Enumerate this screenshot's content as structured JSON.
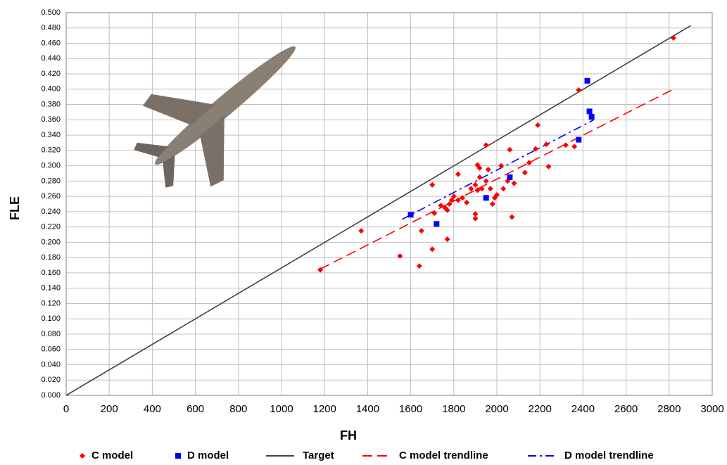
{
  "chart_data": {
    "type": "scatter",
    "x_label": "FH",
    "y_label": "FLE",
    "xlim": [
      0,
      3000
    ],
    "ylim": [
      0,
      0.5
    ],
    "xticks": [
      0,
      200,
      400,
      600,
      800,
      1000,
      1200,
      1400,
      1600,
      1800,
      2000,
      2200,
      2400,
      2600,
      2800,
      3000
    ],
    "yticks": [
      {
        "value": 0,
        "label": "0.000"
      },
      {
        "value": 0.02,
        "label": "0.020"
      },
      {
        "value": 0.04,
        "label": "0.040"
      },
      {
        "value": 0.06,
        "label": "0.060"
      },
      {
        "value": 0.08,
        "label": "0.080"
      },
      {
        "value": 0.1,
        "label": "0.100"
      },
      {
        "value": 0.12,
        "label": "0.120"
      },
      {
        "value": 0.14,
        "label": "0.140"
      },
      {
        "value": 0.16,
        "label": "0.160"
      },
      {
        "value": 0.18,
        "label": "0.180"
      },
      {
        "value": 0.2,
        "label": "0.200"
      },
      {
        "value": 0.22,
        "label": "0.220"
      },
      {
        "value": 0.24,
        "label": "0.240"
      },
      {
        "value": 0.26,
        "label": "0.260"
      },
      {
        "value": 0.28,
        "label": "0.280"
      },
      {
        "value": 0.3,
        "label": "0.300"
      },
      {
        "value": 0.32,
        "label": "0.320"
      },
      {
        "value": 0.34,
        "label": "0.340"
      },
      {
        "value": 0.36,
        "label": "0.360"
      },
      {
        "value": 0.38,
        "label": "0.380"
      },
      {
        "value": 0.4,
        "label": "0.400"
      },
      {
        "value": 0.42,
        "label": "0.420"
      },
      {
        "value": 0.44,
        "label": "0.440"
      },
      {
        "value": 0.46,
        "label": "0.460"
      },
      {
        "value": 0.48,
        "label": "0.480"
      },
      {
        "value": 0.5,
        "label": "0.500"
      }
    ],
    "grid": true,
    "legend": "bottom",
    "series": [
      {
        "name": "C model",
        "type": "scatter",
        "marker": "diamond",
        "color": "#ff0000",
        "x": [
          2820,
          2380,
          2190,
          1950,
          2060,
          2180,
          2320,
          2360,
          2230,
          2240,
          2150,
          2130,
          1180,
          1370,
          1550,
          1640,
          1700,
          1770,
          1650,
          1700,
          1820,
          1710,
          1740,
          1760,
          1770,
          1790,
          1800,
          1820,
          1840,
          1860,
          1880,
          1900,
          1900,
          1900,
          1910,
          1920,
          1920,
          1930,
          1950,
          1960,
          1970,
          1980,
          1990,
          2000,
          2020,
          2030,
          2050,
          2070,
          2080,
          1780,
          1910
        ],
        "values": [
          0.467,
          0.399,
          0.353,
          0.327,
          0.321,
          0.322,
          0.327,
          0.325,
          0.328,
          0.299,
          0.304,
          0.291,
          0.164,
          0.215,
          0.182,
          0.169,
          0.191,
          0.204,
          0.215,
          0.275,
          0.289,
          0.238,
          0.248,
          0.245,
          0.242,
          0.255,
          0.26,
          0.255,
          0.258,
          0.252,
          0.27,
          0.275,
          0.237,
          0.231,
          0.301,
          0.297,
          0.285,
          0.27,
          0.28,
          0.295,
          0.27,
          0.25,
          0.258,
          0.262,
          0.3,
          0.27,
          0.28,
          0.233,
          0.277,
          0.25,
          0.268
        ]
      },
      {
        "name": "D model",
        "type": "scatter",
        "marker": "square",
        "color": "#0000ff",
        "x": [
          2420,
          2430,
          2440,
          2380,
          2060,
          1950,
          1720,
          1600
        ],
        "values": [
          0.411,
          0.371,
          0.364,
          0.334,
          0.285,
          0.258,
          0.224,
          0.236
        ]
      },
      {
        "name": "Target",
        "type": "line",
        "style": "solid",
        "color": "#404040",
        "x": [
          0,
          2900
        ],
        "values": [
          0,
          0.483
        ]
      },
      {
        "name": "C model trendline",
        "type": "line",
        "style": "dashed",
        "color": "#ff0000",
        "x": [
          1180,
          2820
        ],
        "values": [
          0.165,
          0.4
        ]
      },
      {
        "name": "D model trendline",
        "type": "line",
        "style": "dashdot",
        "color": "#0000ff",
        "x": [
          1560,
          2450
        ],
        "values": [
          0.23,
          0.36
        ]
      }
    ]
  }
}
